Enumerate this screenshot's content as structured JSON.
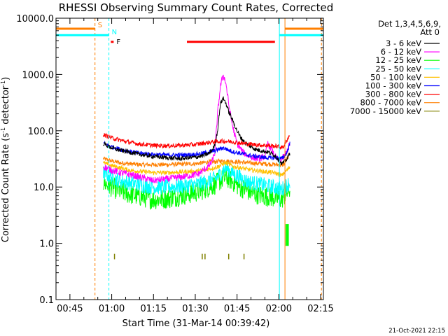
{
  "chart_data": {
    "type": "line",
    "title": "RHESSI Observing Summary Count Rates, Corrected",
    "xlabel": "Start Time (31-Mar-14 00:39:42)",
    "ylabel_main": "Corrected Count Rate (s",
    "ylabel_sup1": "-1",
    "ylabel_mid": " detector",
    "ylabel_sup2": "-1",
    "ylabel_end": ")",
    "x_unit": "minutes",
    "x_range": [
      40,
      136
    ],
    "x_ticks": [
      {
        "v": 45,
        "label": "00:45"
      },
      {
        "v": 60,
        "label": "01:00"
      },
      {
        "v": 75,
        "label": "01:15"
      },
      {
        "v": 90,
        "label": "01:30"
      },
      {
        "v": 105,
        "label": "01:45"
      },
      {
        "v": 120,
        "label": "02:00"
      },
      {
        "v": 135,
        "label": "02:15"
      }
    ],
    "y_scale": "log",
    "y_range": [
      0.1,
      10000
    ],
    "y_ticks": [
      {
        "v": 0.1,
        "label": "0.1"
      },
      {
        "v": 1,
        "label": "1.0"
      },
      {
        "v": 10,
        "label": "10.0"
      },
      {
        "v": 100,
        "label": "100.0"
      },
      {
        "v": 1000,
        "label": "1000.0"
      },
      {
        "v": 10000,
        "label": "10000.0"
      }
    ],
    "legend_header1": "Det 1,3,4,5,6,9,",
    "legend_header2": "Att 0",
    "legend_position": "right",
    "series": [
      {
        "name": "3 - 6 keV",
        "color": "#000000",
        "t": [
          57,
          59,
          62,
          66,
          70,
          75,
          80,
          85,
          90,
          93,
          95,
          96,
          97,
          98,
          99,
          100,
          101,
          102,
          103,
          104,
          105,
          106,
          108,
          110,
          112,
          114,
          116,
          117,
          118,
          119,
          120,
          121,
          122,
          123,
          124
        ],
        "values": [
          60,
          52,
          46,
          42,
          38,
          35,
          33,
          32,
          34,
          36,
          40,
          45,
          55,
          100,
          300,
          380,
          310,
          220,
          170,
          130,
          100,
          80,
          60,
          52,
          46,
          44,
          42,
          40,
          38,
          35,
          30,
          26,
          28,
          32,
          40
        ]
      },
      {
        "name": "6 - 12 keV",
        "color": "#ff00ff",
        "t": [
          57,
          60,
          63,
          66,
          70,
          75,
          80,
          85,
          88,
          91,
          93,
          95,
          96,
          97,
          98,
          99,
          100,
          101,
          102,
          103,
          104,
          105,
          107,
          109,
          111,
          113,
          115,
          116,
          117,
          118,
          119,
          120,
          121,
          122,
          123,
          124
        ],
        "values": [
          23,
          20,
          18,
          17,
          15,
          13,
          14,
          15,
          16,
          17,
          20,
          24,
          28,
          40,
          200,
          600,
          1000,
          700,
          300,
          150,
          90,
          60,
          42,
          36,
          33,
          32,
          35,
          60,
          50,
          40,
          33,
          30,
          32,
          35,
          45,
          60
        ]
      },
      {
        "name": "12 - 25 keV",
        "color": "#00ff00",
        "t": [
          57,
          60,
          63,
          66,
          70,
          75,
          80,
          85,
          90,
          93,
          95,
          97,
          98,
          99,
          100,
          101,
          102,
          104,
          106,
          108,
          110,
          112,
          114,
          116,
          118,
          120,
          121,
          122,
          123,
          124
        ],
        "values": [
          12,
          10,
          8.5,
          7.5,
          6.8,
          6.0,
          6.2,
          7.0,
          8.0,
          9.0,
          10,
          11,
          12,
          13,
          14,
          15,
          14,
          12,
          10,
          9.0,
          8.0,
          7.5,
          7.0,
          6.8,
          6.5,
          6.2,
          6.0,
          7.0,
          8.0,
          9.0
        ]
      },
      {
        "name": "25 - 50 keV",
        "color": "#00ffff",
        "t": [
          57,
          60,
          63,
          66,
          70,
          75,
          80,
          85,
          90,
          93,
          95,
          97,
          98,
          99,
          100,
          101,
          102,
          104,
          106,
          108,
          110,
          112,
          114,
          116,
          118,
          120,
          121,
          122,
          123,
          124
        ],
        "values": [
          18,
          15,
          13,
          12,
          11,
          10,
          10,
          10.5,
          11,
          12,
          13,
          14,
          15,
          17,
          20,
          22,
          20,
          17,
          15,
          13,
          12,
          11.5,
          11,
          10.5,
          10,
          9.5,
          9.0,
          10,
          11,
          12
        ]
      },
      {
        "name": "50 - 100 keV",
        "color": "#ffc000",
        "t": [
          57,
          60,
          63,
          66,
          70,
          75,
          80,
          85,
          90,
          93,
          95,
          97,
          99,
          100,
          101,
          102,
          104,
          106,
          108,
          110,
          112,
          114,
          116,
          118,
          120,
          121,
          122,
          123,
          124
        ],
        "values": [
          27,
          24,
          22,
          20,
          19,
          18,
          18,
          18.5,
          19,
          20,
          21,
          22,
          24,
          26,
          27,
          25,
          23,
          22,
          21,
          20,
          19.5,
          19,
          18.5,
          18,
          17,
          16,
          18,
          20,
          23
        ]
      },
      {
        "name": "100 - 300 keV",
        "color": "#0000ff",
        "t": [
          57,
          60,
          63,
          66,
          70,
          75,
          80,
          85,
          90,
          93,
          95,
          97,
          99,
          100,
          101,
          102,
          104,
          106,
          108,
          110,
          112,
          114,
          116,
          118,
          120,
          121,
          122,
          123,
          124
        ],
        "values": [
          60,
          52,
          47,
          43,
          40,
          38,
          37,
          37,
          38,
          40,
          42,
          44,
          48,
          50,
          48,
          45,
          42,
          40,
          38,
          36,
          35,
          34,
          33,
          33,
          33,
          32,
          35,
          42,
          60
        ]
      },
      {
        "name": "300 - 800 keV",
        "color": "#ff0000",
        "t": [
          57,
          60,
          63,
          66,
          70,
          75,
          80,
          85,
          90,
          93,
          95,
          97,
          99,
          101,
          103,
          105,
          107,
          109,
          111,
          113,
          115,
          117,
          119,
          120,
          121,
          122,
          123,
          124
        ],
        "values": [
          85,
          75,
          68,
          63,
          58,
          55,
          54,
          55,
          57,
          60,
          62,
          64,
          65,
          65,
          64,
          62,
          60,
          58,
          57,
          56,
          55,
          54,
          53,
          52,
          50,
          55,
          70,
          85
        ]
      },
      {
        "name": "800 - 7000 keV",
        "color": "#ff7f00",
        "t": [
          57,
          60,
          63,
          66,
          70,
          75,
          80,
          85,
          90,
          93,
          95,
          97,
          99,
          101,
          103,
          105,
          107,
          109,
          111,
          113,
          115,
          117,
          119,
          120,
          121,
          122,
          123,
          124
        ],
        "values": [
          32,
          29,
          27,
          26,
          25,
          25,
          25,
          25.5,
          26,
          27,
          28,
          28,
          29,
          29,
          28.5,
          28,
          27.5,
          27,
          26.5,
          26,
          26,
          25.5,
          25,
          25,
          24,
          26,
          32,
          40
        ]
      },
      {
        "name": "7000 - 15000 keV",
        "color": "#808000",
        "t": [],
        "values": []
      }
    ],
    "bursts_olive_t": [
      61,
      92.5,
      93.5,
      102,
      107.5
    ],
    "spike_green_t": [
      122.6,
      123.0,
      123.4
    ],
    "vlines": [
      {
        "t": 54,
        "color": "#ff7f00",
        "dashed": true
      },
      {
        "t": 59,
        "color": "#00ffff",
        "dashed": true
      },
      {
        "t": 120.2,
        "color": "#00ffff",
        "dashed": false
      },
      {
        "t": 122.2,
        "color": "#ff7f00",
        "dashed": false
      },
      {
        "t": 135.3,
        "color": "#ff7f00",
        "dashed": true
      }
    ],
    "flag_bars": [
      {
        "label": "S",
        "color": "#ff7f00",
        "t0": 40,
        "t1": 54,
        "y": 6500
      },
      {
        "label": "",
        "color": "#ff7f00",
        "t0": 122.2,
        "t1": 136,
        "y": 6500
      },
      {
        "label": "N",
        "color": "#00ffff",
        "t0": 40,
        "t1": 59,
        "y": 5000
      },
      {
        "label": "",
        "color": "#00ffff",
        "t0": 120.2,
        "t1": 136,
        "y": 5000
      },
      {
        "label": "F",
        "color": "#ff0000",
        "t0": 59.7,
        "t1": 60.7,
        "y": 3800
      },
      {
        "label": "",
        "color": "#ff0000",
        "t0": 87,
        "t1": 118.6,
        "y": 3800
      }
    ]
  },
  "timestamp": "21-Oct-2021 22:15"
}
